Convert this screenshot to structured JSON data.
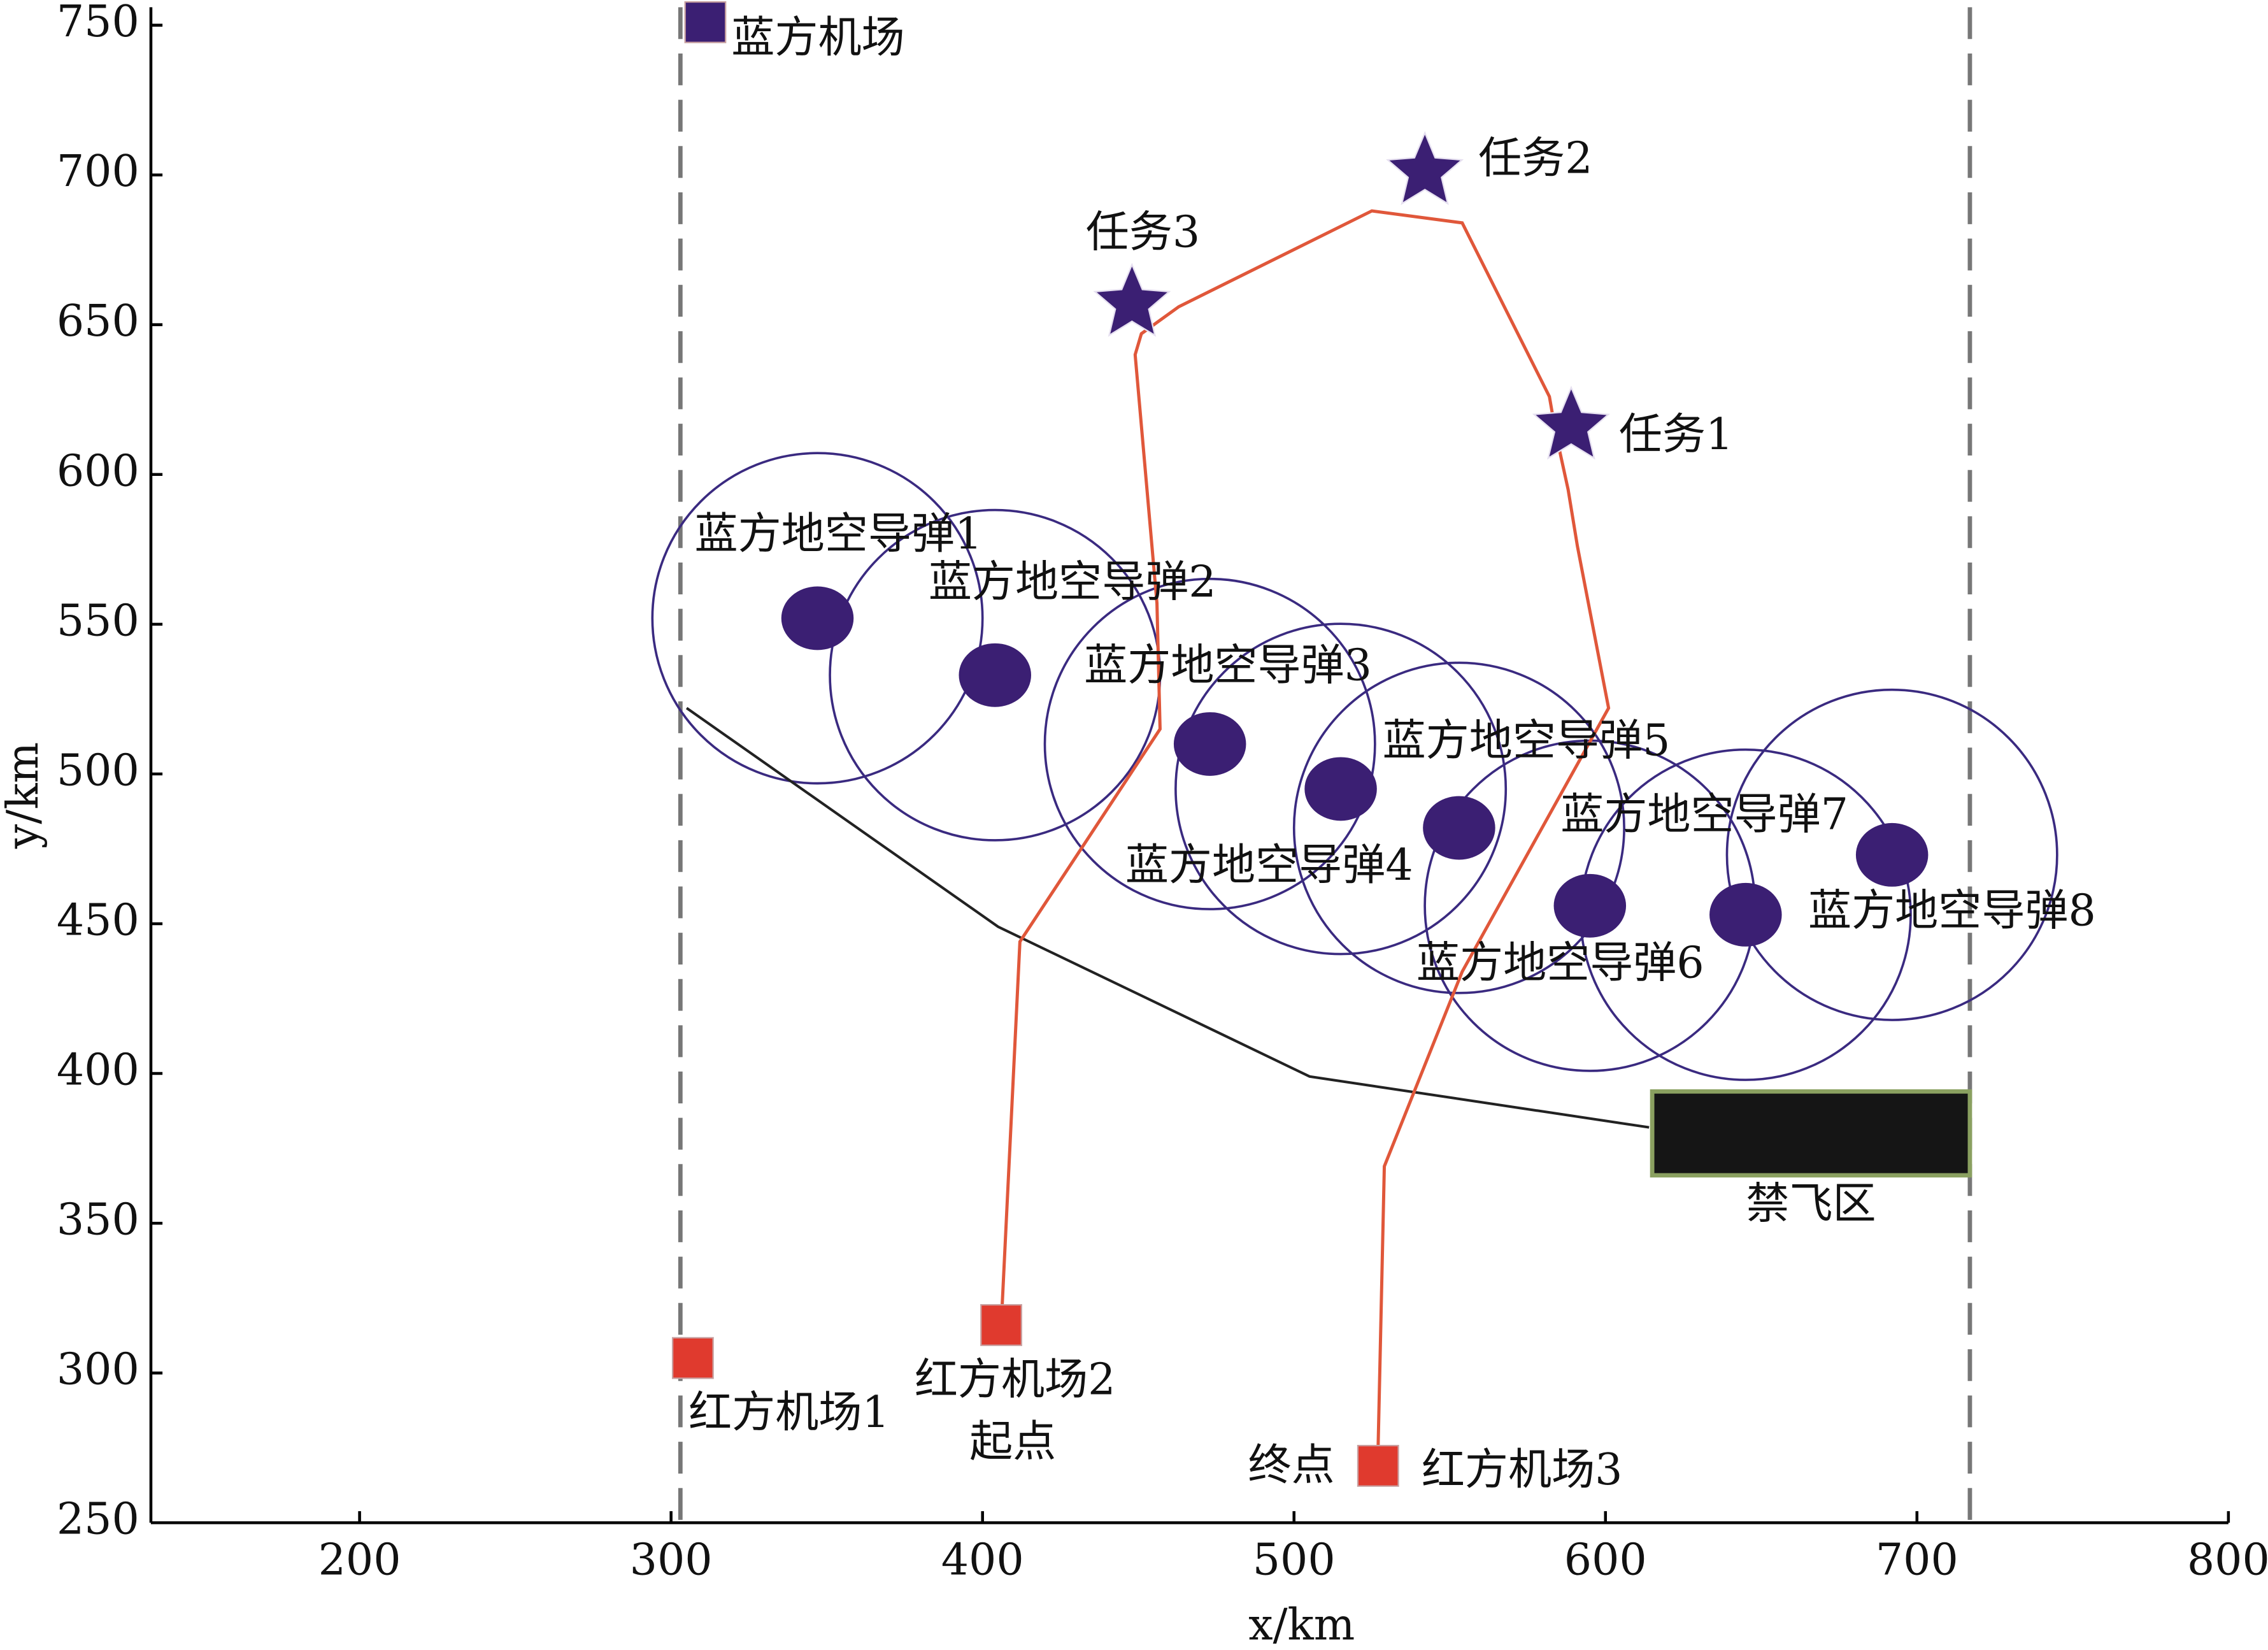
{
  "chart_data": {
    "type": "scatter",
    "xlabel": "x/km",
    "ylabel": "y/km",
    "xlim": [
      133,
      800
    ],
    "ylim": [
      250,
      756
    ],
    "xticks": [
      200,
      300,
      400,
      500,
      600,
      700,
      800
    ],
    "yticks": [
      250,
      300,
      350,
      400,
      450,
      500,
      550,
      600,
      650,
      700,
      750
    ],
    "boundary_x": [
      303,
      717
    ],
    "boundary_color": "#777777",
    "markers": [
      {
        "label": "蓝方机场",
        "x": 311,
        "y": 751,
        "shape": "square",
        "color": "#3b1f73"
      },
      {
        "label": "红方机场1",
        "x": 307,
        "y": 305,
        "shape": "square",
        "color": "#e03a2e"
      },
      {
        "label": "红方机场2",
        "note": "起点",
        "x": 406,
        "y": 316,
        "shape": "square",
        "color": "#e03a2e"
      },
      {
        "label": "红方机场3",
        "note": "终点",
        "x": 527,
        "y": 269,
        "shape": "square",
        "color": "#e03a2e"
      },
      {
        "label": "任务1",
        "x": 589,
        "y": 616,
        "shape": "star",
        "color": "#3b1f73"
      },
      {
        "label": "任务2",
        "x": 542,
        "y": 701,
        "shape": "star",
        "color": "#3b1f73"
      },
      {
        "label": "任务3",
        "x": 448,
        "y": 657,
        "shape": "star",
        "color": "#3b1f73"
      }
    ],
    "missile_color": "#3b1f73",
    "circle_color": "#3a2a80",
    "missiles": [
      {
        "label": "蓝方地空导弹1",
        "x": 347,
        "y": 552,
        "r": 53
      },
      {
        "label": "蓝方地空导弹2",
        "x": 404,
        "y": 533,
        "r": 53
      },
      {
        "label": "蓝方地空导弹3",
        "x": 473,
        "y": 510,
        "r": 53
      },
      {
        "label": "蓝方地空导弹4",
        "x": 515,
        "y": 495,
        "r": 53
      },
      {
        "label": "蓝方地空导弹5",
        "x": 553,
        "y": 482,
        "r": 53
      },
      {
        "label": "蓝方地空导弹6",
        "x": 595,
        "y": 456,
        "r": 53
      },
      {
        "label": "蓝方地空导弹7",
        "x": 645,
        "y": 453,
        "r": 53
      },
      {
        "label": "蓝方地空导弹8",
        "x": 692,
        "y": 473,
        "r": 53
      }
    ],
    "route": {
      "color": "#e0573a",
      "x": [
        406,
        412,
        457,
        456,
        449,
        451,
        463,
        525,
        554,
        582,
        584,
        588,
        591,
        601,
        554,
        529,
        527
      ],
      "y": [
        316,
        444,
        515,
        557,
        640,
        647,
        656,
        688,
        684,
        626,
        614,
        595,
        576,
        522,
        434,
        369,
        275
      ]
    },
    "threat_line": {
      "color": "#222222",
      "x": [
        305,
        405,
        505,
        614
      ],
      "y": [
        522,
        449,
        399,
        382
      ]
    },
    "no_fly": {
      "label": "禁飞区",
      "x": [
        615,
        717
      ],
      "y": [
        366,
        394
      ],
      "color": "#151515",
      "edge": "#8aa060"
    }
  }
}
